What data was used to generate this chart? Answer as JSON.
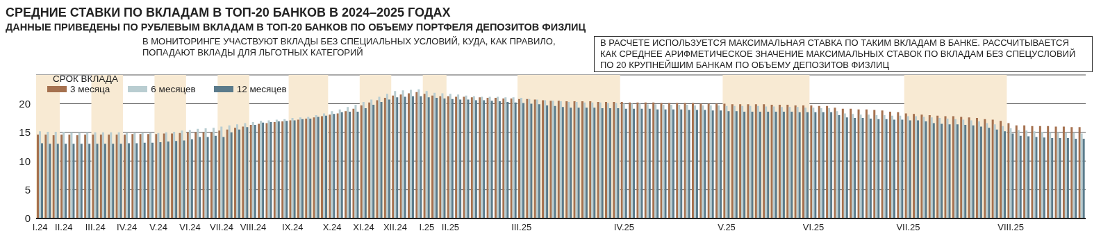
{
  "chart_data": {
    "type": "bar",
    "title": "СРЕДНИЕ СТАВКИ ПО ВКЛАДАМ В ТОП-20 БАНКОВ В 2024–2025 ГОДАХ",
    "subtitle": "ДАННЫЕ ПРИВЕДЕНЫ ПО РУБЛЕВЫМ ВКЛАДАМ В ТОП-20 БАНКОВ ПО ОБЪЕМУ ПОРТФЕЛЯ ДЕПОЗИТОВ ФИЗЛИЦ",
    "annotations": [
      "В МОНИТОРИНГЕ УЧАСТВУЮТ ВКЛАДЫ БЕЗ СПЕЦИАЛЬНЫХ УСЛОВИЙ, КУДА, КАК ПРАВИЛО, ПОПАДАЮТ ВКЛАДЫ ДЛЯ ЛЬГОТНЫХ КАТЕГОРИЙ",
      "В РАСЧЕТЕ ИСПОЛЬЗУЕТСЯ МАКСИМАЛЬНАЯ СТАВКА ПО ТАКИМ ВКЛАДАМ В БАНКЕ. РАССЧИТЫВАЕТСЯ КАК СРЕДНЕЕ АРИФМЕТИЧЕСКОЕ ЗНАЧЕНИЕ МАКСИМАЛЬНЫХ СТАВОК ПО ВКЛАДАМ БЕЗ СПЕЦУСЛОВИЙ ПО 20 КРУПНЕЙШИМ БАНКАМ ПО ОБЪЕМУ ДЕПОЗИТОВ ФИЗЛИЦ"
    ],
    "legend_title": "СРОК ВКЛАДА",
    "legend": "top left",
    "grid": "y",
    "ylim": [
      0,
      25
    ],
    "yticks": [
      0,
      5,
      10,
      15,
      20
    ],
    "categories": [
      "I.24",
      null,
      null,
      "II.24",
      null,
      null,
      null,
      "III.24",
      null,
      null,
      null,
      "IV.24",
      null,
      null,
      null,
      "V.24",
      null,
      null,
      null,
      "VI.24",
      null,
      null,
      null,
      "VII.24",
      null,
      null,
      null,
      "VIII.24",
      null,
      null,
      null,
      null,
      "IX.24",
      null,
      null,
      null,
      null,
      "X.24",
      null,
      null,
      null,
      "XI.24",
      null,
      null,
      null,
      "XII.24",
      null,
      null,
      null,
      "I.25",
      null,
      null,
      "II.25",
      null,
      null,
      null,
      null,
      null,
      null,
      null,
      null,
      "III.25",
      null,
      null,
      null,
      null,
      null,
      null,
      null,
      null,
      null,
      null,
      null,
      null,
      "IV.25",
      null,
      null,
      null,
      null,
      null,
      null,
      null,
      null,
      null,
      null,
      null,
      null,
      "V.25",
      null,
      null,
      null,
      null,
      null,
      null,
      null,
      null,
      null,
      null,
      "VI.25",
      null,
      null,
      null,
      null,
      null,
      null,
      null,
      null,
      null,
      null,
      null,
      "VII.25",
      null,
      null,
      null,
      null,
      null,
      null,
      null,
      null,
      null,
      null,
      null,
      null,
      "VIII.25",
      null,
      null,
      null,
      null,
      null,
      null,
      null,
      null,
      null
    ],
    "bands": [
      {
        "axis": "x",
        "from": "I.24",
        "to": "II.24",
        "color": "#f8ead3"
      },
      {
        "axis": "x",
        "from": "III.24",
        "to": "IV.24",
        "color": "#f8ead3"
      },
      {
        "axis": "x",
        "from": "V.24",
        "to": "VI.24",
        "color": "#f8ead3"
      },
      {
        "axis": "x",
        "from": "VII.24",
        "to": "VIII.24",
        "color": "#f8ead3"
      },
      {
        "axis": "x",
        "from": "IX.24",
        "to": "X.24",
        "color": "#f8ead3"
      },
      {
        "axis": "x",
        "from": "XI.24",
        "to": "XII.24",
        "color": "#f8ead3"
      },
      {
        "axis": "x",
        "from": "I.25",
        "to": "II.25",
        "color": "#f8ead3"
      },
      {
        "axis": "x",
        "from": "III.25",
        "to": "IV.25",
        "color": "#f8ead3"
      },
      {
        "axis": "x",
        "from": "V.25",
        "to": "VI.25",
        "color": "#f8ead3"
      },
      {
        "axis": "x",
        "from": "VII.25",
        "to": "VIII.25",
        "color": "#f8ead3"
      }
    ],
    "series": [
      {
        "name": "3 месяца",
        "color": "#a5714f",
        "values": [
          14.6,
          14.6,
          14.5,
          14.6,
          14.6,
          14.5,
          14.6,
          14.6,
          14.6,
          14.6,
          14.6,
          14.6,
          14.7,
          14.7,
          14.7,
          14.7,
          14.8,
          14.8,
          14.9,
          15.0,
          15.0,
          15.0,
          15.0,
          15.3,
          15.5,
          15.8,
          16.0,
          16.3,
          16.5,
          16.6,
          16.8,
          16.9,
          17.1,
          17.2,
          17.4,
          17.6,
          17.8,
          18.1,
          18.3,
          18.7,
          19.1,
          19.7,
          20.2,
          20.6,
          21.0,
          21.4,
          21.6,
          21.8,
          22.0,
          21.7,
          21.4,
          21.3,
          21.3,
          21.2,
          21.2,
          21.1,
          21.1,
          21.0,
          21.0,
          20.9,
          20.9,
          20.8,
          20.8,
          20.7,
          20.6,
          20.5,
          20.5,
          20.4,
          20.4,
          20.4,
          20.4,
          20.3,
          20.3,
          20.3,
          20.3,
          20.2,
          20.2,
          20.2,
          20.2,
          20.1,
          20.1,
          20.1,
          20.1,
          20.1,
          20.0,
          20.0,
          20.0,
          20.0,
          19.9,
          19.9,
          19.9,
          19.9,
          19.9,
          19.8,
          19.8,
          19.8,
          19.7,
          19.7,
          19.7,
          19.6,
          19.6,
          19.3,
          19.1,
          19.1,
          19.0,
          19.0,
          18.9,
          18.8,
          18.6,
          18.5,
          18.3,
          18.2,
          18.1,
          18.0,
          17.9,
          17.8,
          17.8,
          17.7,
          17.6,
          17.5,
          17.3,
          17.2,
          17.0,
          16.6,
          16.2,
          16.2,
          16.1,
          16.1,
          16.1,
          16.0,
          16.0,
          15.9,
          15.9
        ]
      },
      {
        "name": "6 месяцев",
        "color": "#b9cdd1",
        "values": [
          15.2,
          15.1,
          15.1,
          15.1,
          15.0,
          15.0,
          15.0,
          15.0,
          15.0,
          15.0,
          15.0,
          14.9,
          14.9,
          14.9,
          14.9,
          14.9,
          15.0,
          15.1,
          15.3,
          15.4,
          15.6,
          15.7,
          15.8,
          16.0,
          16.2,
          16.4,
          16.6,
          16.8,
          17.0,
          17.1,
          17.2,
          17.3,
          17.5,
          17.6,
          17.7,
          18.0,
          18.3,
          18.7,
          19.0,
          19.4,
          19.8,
          20.3,
          20.7,
          21.2,
          21.7,
          22.2,
          22.3,
          22.4,
          22.5,
          22.2,
          21.9,
          21.8,
          21.7,
          21.6,
          21.4,
          21.3,
          21.2,
          21.2,
          21.2,
          21.1,
          21.1,
          21.0,
          20.8,
          20.7,
          20.6,
          20.5,
          20.4,
          20.3,
          20.3,
          20.2,
          20.2,
          20.2,
          20.1,
          20.1,
          20.0,
          20.0,
          20.0,
          19.9,
          19.9,
          19.8,
          19.8,
          19.8,
          19.8,
          19.7,
          19.7,
          19.7,
          19.7,
          19.6,
          19.6,
          19.6,
          19.6,
          19.6,
          19.5,
          19.5,
          19.4,
          19.4,
          19.4,
          19.3,
          19.3,
          19.2,
          19.2,
          18.7,
          18.3,
          18.2,
          18.1,
          18.1,
          18.0,
          18.0,
          17.9,
          17.9,
          17.8,
          17.8,
          17.7,
          17.6,
          17.5,
          17.4,
          17.3,
          17.2,
          17.1,
          16.9,
          16.6,
          16.4,
          16.1,
          15.7,
          15.4,
          15.3,
          15.2,
          15.1,
          15.0,
          15.0,
          14.9,
          14.9,
          14.8
        ]
      },
      {
        "name": "12 месяцев",
        "color": "#5b7b8b",
        "values": [
          13.1,
          13.0,
          13.0,
          13.0,
          13.0,
          13.0,
          13.0,
          13.0,
          13.0,
          13.0,
          13.0,
          13.1,
          13.1,
          13.2,
          13.2,
          13.3,
          13.4,
          13.5,
          13.6,
          13.8,
          14.2,
          14.2,
          14.4,
          14.2,
          15.0,
          15.5,
          15.9,
          16.3,
          16.7,
          16.8,
          16.9,
          17.0,
          17.1,
          17.3,
          17.4,
          17.7,
          17.9,
          18.2,
          18.5,
          18.6,
          18.6,
          19.2,
          19.8,
          20.3,
          20.7,
          21.1,
          21.2,
          21.3,
          21.3,
          21.1,
          21.0,
          20.9,
          20.8,
          20.7,
          20.7,
          20.6,
          20.6,
          20.5,
          20.4,
          20.3,
          20.2,
          20.1,
          20.0,
          19.9,
          19.7,
          19.6,
          19.4,
          19.3,
          19.3,
          19.3,
          19.3,
          19.2,
          19.2,
          19.2,
          19.1,
          19.1,
          19.1,
          19.1,
          19.0,
          19.0,
          19.0,
          19.0,
          18.9,
          18.9,
          18.9,
          18.8,
          18.8,
          18.7,
          18.7,
          18.6,
          18.6,
          18.6,
          18.6,
          18.6,
          18.6,
          18.6,
          18.5,
          18.5,
          18.5,
          18.5,
          18.5,
          18.0,
          17.6,
          17.5,
          17.5,
          17.4,
          17.3,
          17.3,
          17.2,
          17.2,
          17.1,
          17.1,
          16.9,
          16.6,
          16.5,
          16.4,
          16.4,
          16.3,
          16.2,
          16.0,
          15.8,
          15.5,
          15.2,
          14.8,
          14.4,
          14.3,
          14.2,
          14.1,
          14.0,
          14.0,
          14.0,
          13.9,
          13.9
        ]
      }
    ]
  }
}
